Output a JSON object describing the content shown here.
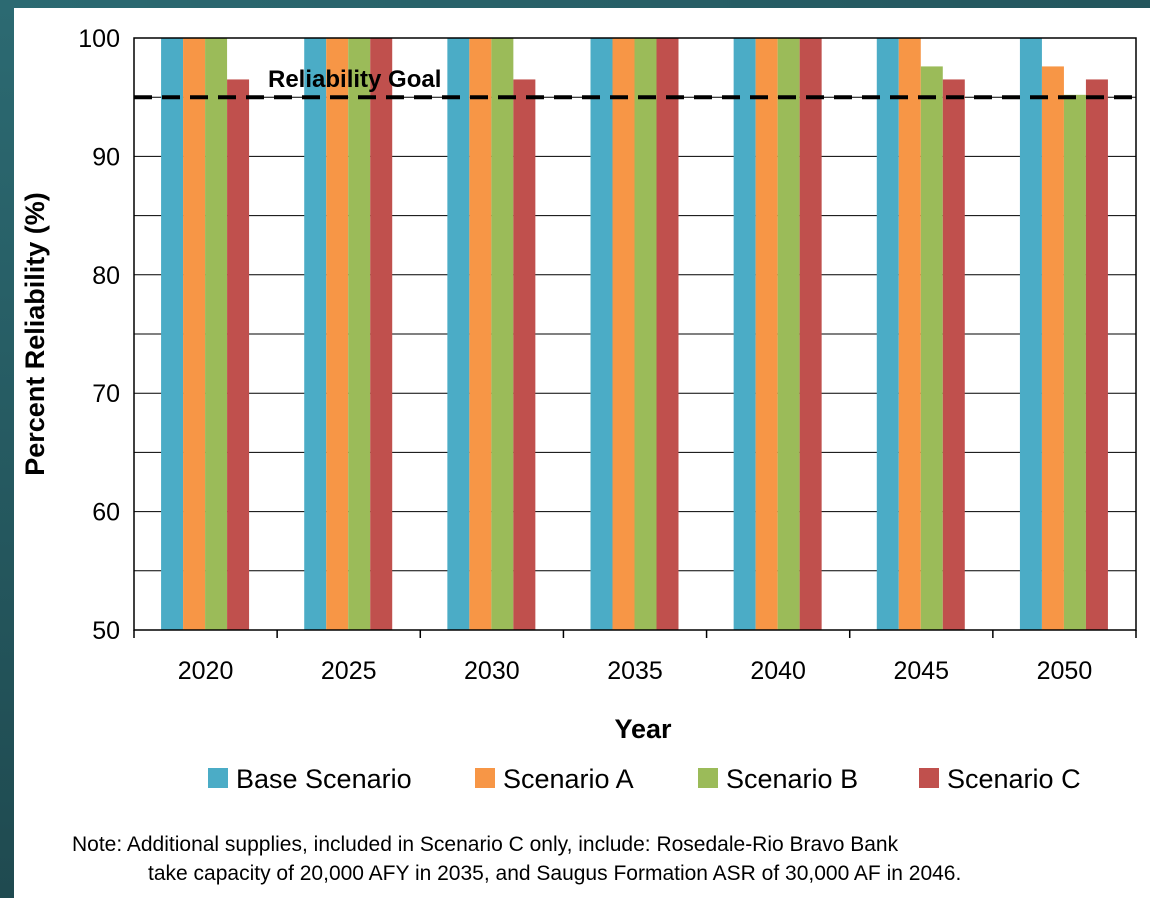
{
  "chart_data": {
    "type": "bar",
    "categories": [
      "2020",
      "2025",
      "2030",
      "2035",
      "2040",
      "2045",
      "2050"
    ],
    "series": [
      {
        "name": "Base Scenario",
        "color": "#4bacc6",
        "values": [
          100,
          100,
          100,
          100,
          100,
          100,
          100
        ]
      },
      {
        "name": "Scenario A",
        "color": "#f79646",
        "values": [
          100,
          100,
          100,
          100,
          100,
          100,
          97.6
        ]
      },
      {
        "name": "Scenario B",
        "color": "#9bbb59",
        "values": [
          100,
          100,
          100,
          100,
          100,
          97.6,
          95.2
        ]
      },
      {
        "name": "Scenario C",
        "color": "#c0504d",
        "values": [
          96.5,
          100,
          96.5,
          100,
          100,
          96.5,
          96.5
        ]
      }
    ],
    "xlabel": "Year",
    "ylabel": "Percent Reliability  (%)",
    "ylim": [
      50,
      100
    ],
    "yticks": [
      "50",
      "60",
      "70",
      "80",
      "90",
      "100"
    ],
    "grid": true,
    "legend_position": "bottom",
    "reference_line": {
      "label": "Reliability Goal",
      "value": 95
    }
  },
  "note": {
    "line1": "Note:  Additional supplies, included in Scenario C only, include:  Rosedale-Rio Bravo Bank",
    "line2": "take capacity of 20,000 AFY in 2035, and Saugus Formation ASR of 30,000 AF in 2046."
  }
}
